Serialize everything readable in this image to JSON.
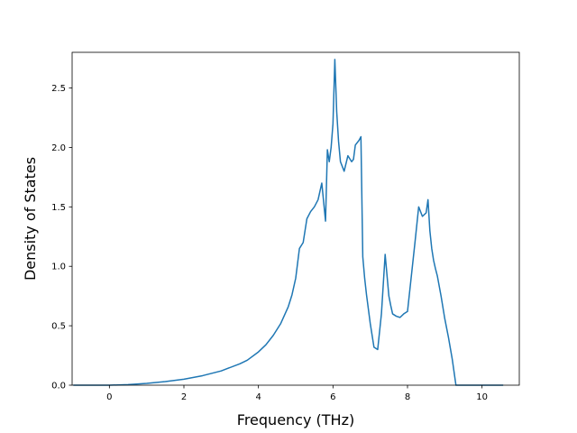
{
  "chart_data": {
    "type": "line",
    "title": "",
    "xlabel": "Frequency (THz)",
    "ylabel": "Density of States",
    "xlim": [
      -1.0,
      11.0
    ],
    "ylim": [
      0.0,
      2.8
    ],
    "xticks": [
      0,
      2,
      4,
      6,
      8,
      10
    ],
    "yticks": [
      0.0,
      0.5,
      1.0,
      1.5,
      2.0,
      2.5
    ],
    "xtick_labels": [
      "0",
      "2",
      "4",
      "6",
      "8",
      "10"
    ],
    "ytick_labels": [
      "0.0",
      "0.5",
      "1.0",
      "1.5",
      "2.0",
      "2.5"
    ],
    "grid": false,
    "legend": "none",
    "line_color": "#1f77b4",
    "series": [
      {
        "x": [
          -0.95,
          0.0,
          0.5,
          1.0,
          1.5,
          2.0,
          2.5,
          3.0,
          3.5,
          3.7,
          4.0,
          4.2,
          4.4,
          4.6,
          4.8,
          4.9,
          5.0,
          5.1,
          5.2,
          5.3,
          5.4,
          5.5,
          5.6,
          5.7,
          5.8,
          5.85,
          5.9,
          5.95,
          6.0,
          6.05,
          6.1,
          6.15,
          6.2,
          6.3,
          6.4,
          6.5,
          6.55,
          6.6,
          6.7,
          6.75,
          6.8,
          6.85,
          6.9,
          7.0,
          7.1,
          7.2,
          7.3,
          7.4,
          7.5,
          7.55,
          7.6,
          7.7,
          7.8,
          7.9,
          8.0,
          8.2,
          8.3,
          8.4,
          8.5,
          8.55,
          8.6,
          8.65,
          8.7,
          8.75,
          8.8,
          8.9,
          9.0,
          9.1,
          9.2,
          9.3,
          9.4,
          9.5,
          9.6,
          9.65,
          10.55
        ],
        "y": [
          0.0,
          0.0,
          0.005,
          0.015,
          0.03,
          0.05,
          0.08,
          0.12,
          0.18,
          0.21,
          0.28,
          0.34,
          0.42,
          0.52,
          0.66,
          0.76,
          0.9,
          1.15,
          1.2,
          1.4,
          1.46,
          1.5,
          1.56,
          1.7,
          1.38,
          1.98,
          1.88,
          2.0,
          2.2,
          2.74,
          2.3,
          2.05,
          1.88,
          1.8,
          1.93,
          1.88,
          1.9,
          2.02,
          2.06,
          2.09,
          1.08,
          0.9,
          0.76,
          0.52,
          0.32,
          0.3,
          0.6,
          1.1,
          0.75,
          0.67,
          0.6,
          0.58,
          0.57,
          0.6,
          0.62,
          1.2,
          1.5,
          1.42,
          1.45,
          1.56,
          1.3,
          1.15,
          1.05,
          0.98,
          0.92,
          0.75,
          0.56,
          0.4,
          0.22,
          0.0,
          0.0,
          0.0,
          0.0,
          0.0,
          0.0
        ]
      }
    ]
  }
}
